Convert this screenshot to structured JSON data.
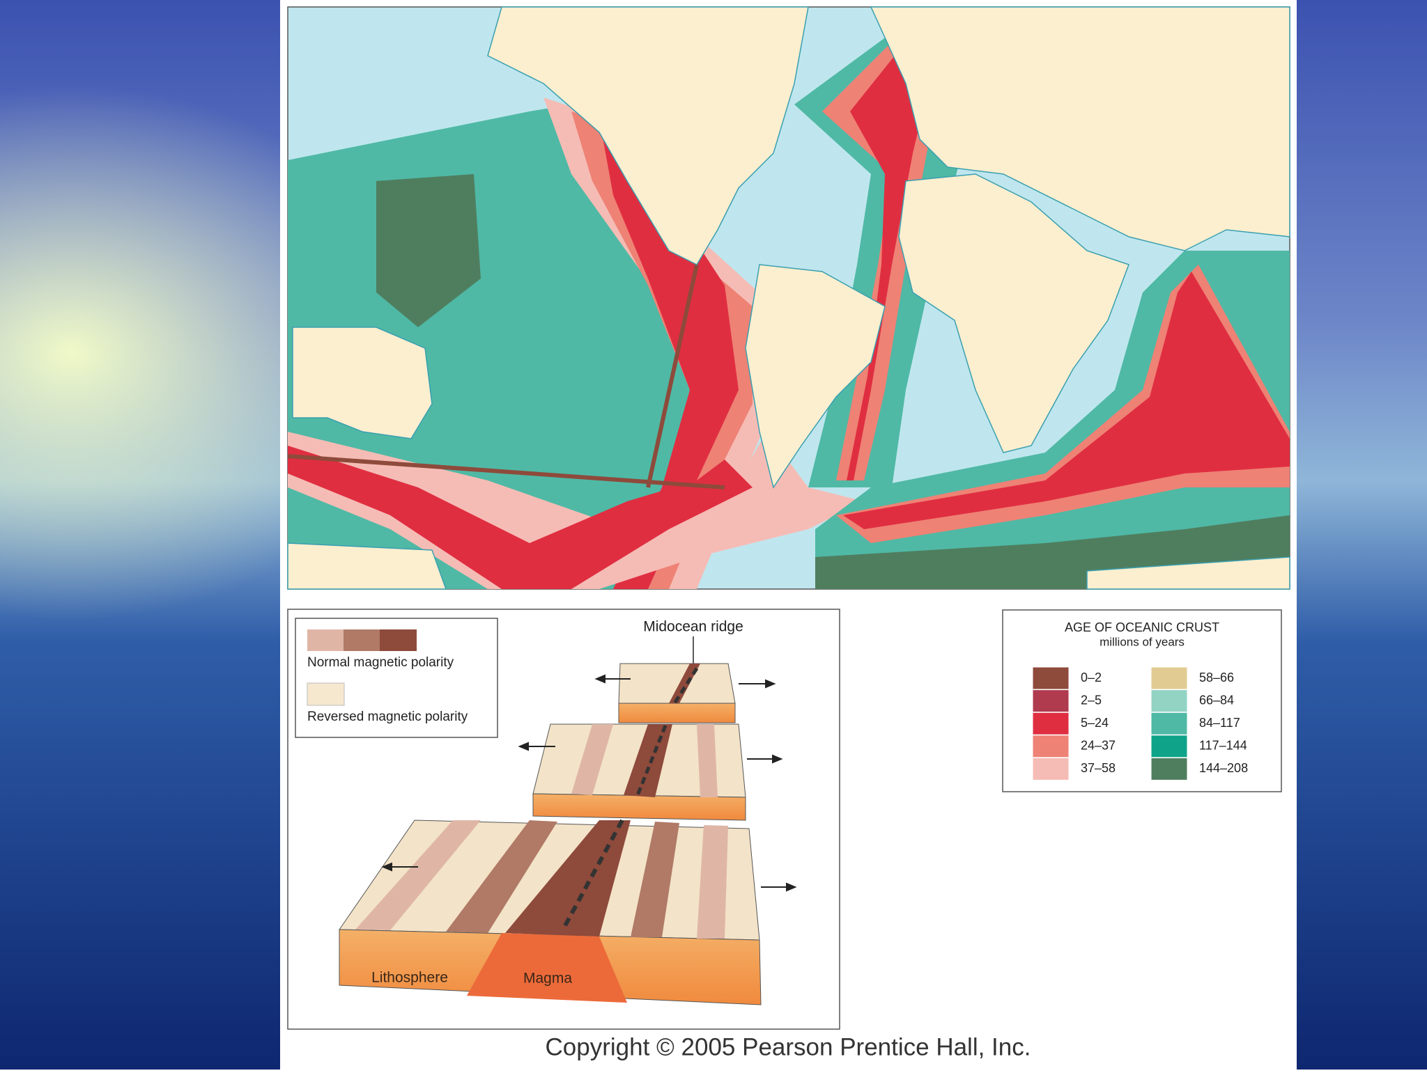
{
  "legend": {
    "title": "AGE OF OCEANIC CRUST",
    "subtitle": "millions of years",
    "items": [
      {
        "label": "0–2",
        "color": "#8e4a3b"
      },
      {
        "label": "2–5",
        "color": "#b03a4e"
      },
      {
        "label": "5–24",
        "color": "#e02e41"
      },
      {
        "label": "24–37",
        "color": "#ee8275"
      },
      {
        "label": "37–58",
        "color": "#f5bcb5"
      },
      {
        "label": "58–66",
        "color": "#e2cb93"
      },
      {
        "label": "66–84",
        "color": "#93d3c4"
      },
      {
        "label": "84–117",
        "color": "#4fb9a5"
      },
      {
        "label": "117–144",
        "color": "#0fa48a"
      },
      {
        "label": "144–208",
        "color": "#4f7e5f"
      }
    ]
  },
  "diagram": {
    "normal": "Normal magnetic polarity",
    "reversed": "Reversed magnetic polarity",
    "ridge": "Midocean ridge",
    "lithosphere": "Lithosphere",
    "magma": "Magma"
  },
  "footer": {
    "copyright": "Copyright © 2005 Pearson Prentice Hall, Inc."
  }
}
